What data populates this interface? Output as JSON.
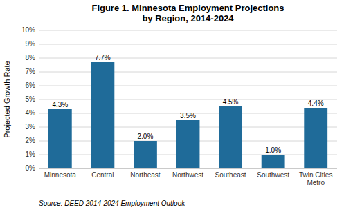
{
  "chart_data": {
    "type": "bar",
    "title": "Figure 1. Minnesota Employment Projections\nby Region, 2014-2024",
    "categories": [
      "Minnesota",
      "Central",
      "Northeast",
      "Northwest",
      "Southeast",
      "Southwest",
      "Twin Cities\nMetro"
    ],
    "values": [
      4.3,
      7.7,
      2.0,
      3.5,
      4.5,
      1.0,
      4.4
    ],
    "value_labels": [
      "4.3%",
      "7.7%",
      "2.0%",
      "3.5%",
      "4.5%",
      "1.0%",
      "4.4%"
    ],
    "data_labels": true,
    "color": "#1F6B99",
    "ylabel": "Projected Growth Rate",
    "ylim": [
      0,
      10
    ],
    "yticks": [
      {
        "value": 0,
        "label": "0%"
      },
      {
        "value": 1,
        "label": "1%"
      },
      {
        "value": 2,
        "label": "2%"
      },
      {
        "value": 3,
        "label": "3%"
      },
      {
        "value": 4,
        "label": "4%"
      },
      {
        "value": 5,
        "label": "5%"
      },
      {
        "value": 6,
        "label": "6%"
      },
      {
        "value": 7,
        "label": "7%"
      },
      {
        "value": 8,
        "label": "8%"
      },
      {
        "value": 9,
        "label": "9%"
      },
      {
        "value": 10,
        "label": "10%"
      }
    ],
    "grid": true,
    "annotation": "Source: DEED 2014-2024 Employment Outlook"
  }
}
